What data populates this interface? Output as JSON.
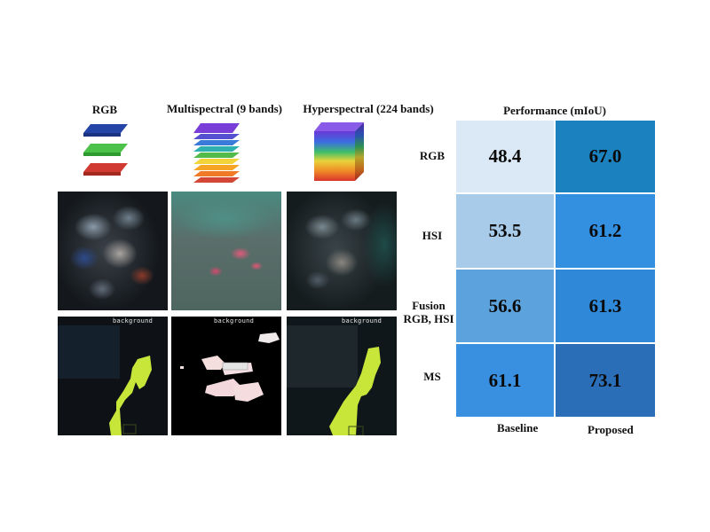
{
  "modalities": [
    {
      "label": "RGB"
    },
    {
      "label": "Multispectral (9 bands)"
    },
    {
      "label": "Hyperspectral (224 bands)"
    }
  ],
  "panels": {
    "segmentation_label": "background"
  },
  "performance": {
    "title": "Performance (mIoU)",
    "rows": [
      {
        "label_line1": "RGB",
        "label_line2": "",
        "baseline": "48.4",
        "proposed": "67.0",
        "baseline_color": "#dbe9f6",
        "proposed_color": "#1b82bf"
      },
      {
        "label_line1": "HSI",
        "label_line2": "",
        "baseline": "53.5",
        "proposed": "61.2",
        "baseline_color": "#a7cbe9",
        "proposed_color": "#3390e0"
      },
      {
        "label_line1": "Fusion",
        "label_line2": "RGB, HSI",
        "baseline": "56.6",
        "proposed": "61.3",
        "baseline_color": "#5ca2dd",
        "proposed_color": "#2f88d8"
      },
      {
        "label_line1": "MS",
        "label_line2": "",
        "baseline": "61.1",
        "proposed": "73.1",
        "baseline_color": "#3a90e0",
        "proposed_color": "#2a6eb8"
      }
    ],
    "columns": {
      "baseline": "Baseline",
      "proposed": "Proposed"
    }
  }
}
